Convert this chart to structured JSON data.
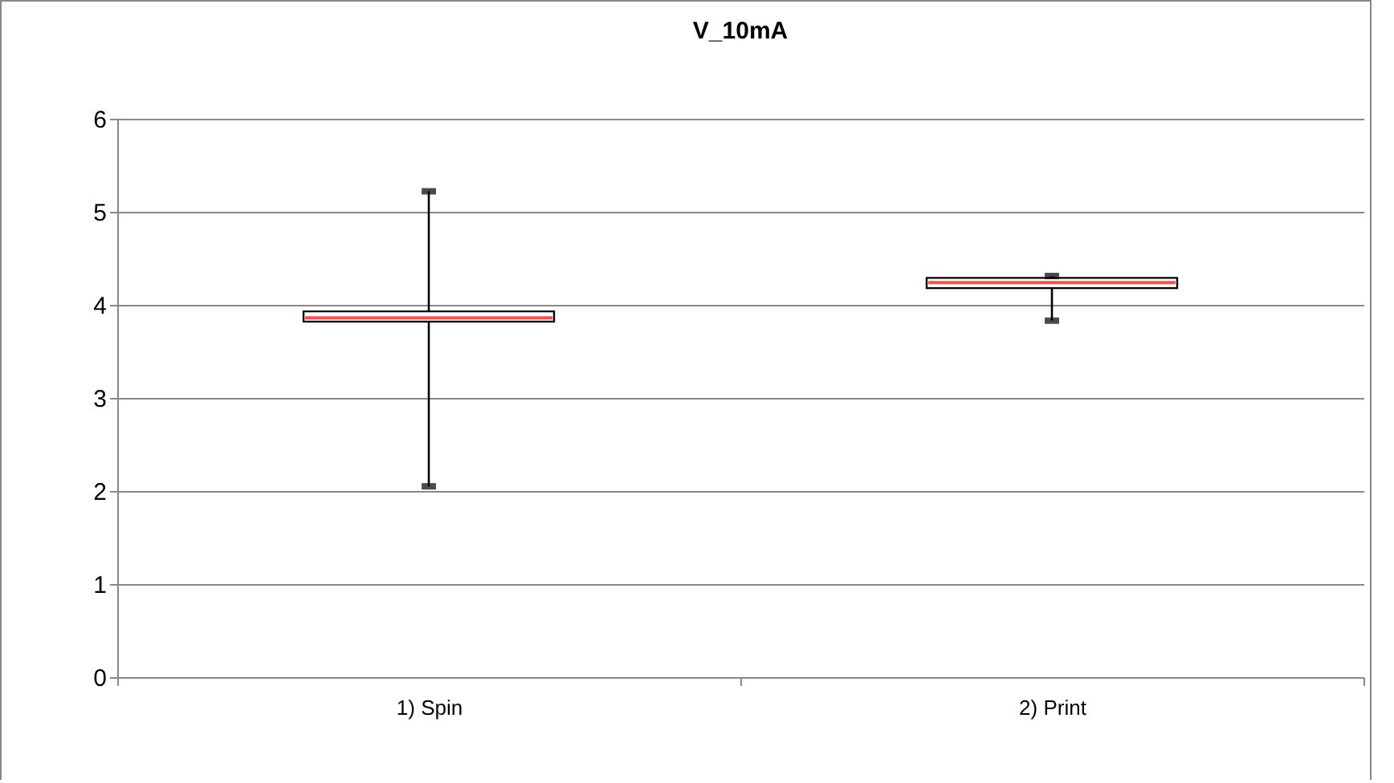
{
  "chart_data": {
    "type": "box",
    "title": "V_10mA",
    "categories": [
      "1) Spin",
      "2) Print"
    ],
    "boxes": [
      {
        "low": 2.05,
        "q1": 3.82,
        "median": 3.86,
        "q3": 3.93,
        "high": 5.22
      },
      {
        "low": 3.83,
        "q1": 4.18,
        "median": 4.24,
        "q3": 4.29,
        "high": 4.31
      }
    ],
    "ylim": [
      0,
      6
    ],
    "yticks": [
      0,
      1,
      2,
      3,
      4,
      5,
      6
    ],
    "grid": "y"
  }
}
